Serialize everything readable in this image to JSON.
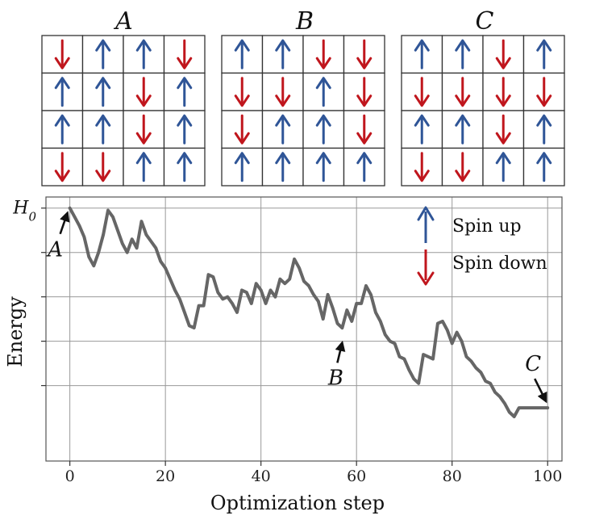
{
  "colors": {
    "spin_up": "#2f5597",
    "spin_down": "#c0161d",
    "energy_line": "#666666",
    "grid": "#999999",
    "cell_border": "#333333"
  },
  "spin_grids": [
    {
      "title": "A",
      "rows": [
        [
          "down",
          "up",
          "up",
          "down"
        ],
        [
          "up",
          "up",
          "down",
          "up"
        ],
        [
          "up",
          "up",
          "down",
          "up"
        ],
        [
          "down",
          "down",
          "up",
          "up"
        ]
      ]
    },
    {
      "title": "B",
      "rows": [
        [
          "up",
          "up",
          "down",
          "down"
        ],
        [
          "down",
          "down",
          "up",
          "down"
        ],
        [
          "down",
          "up",
          "up",
          "down"
        ],
        [
          "up",
          "up",
          "up",
          "up"
        ]
      ]
    },
    {
      "title": "C",
      "rows": [
        [
          "up",
          "up",
          "down",
          "up"
        ],
        [
          "down",
          "down",
          "down",
          "down"
        ],
        [
          "up",
          "up",
          "down",
          "up"
        ],
        [
          "down",
          "down",
          "up",
          "up"
        ]
      ]
    }
  ],
  "chart_data": {
    "type": "line",
    "xlabel": "Optimization step",
    "ylabel": "Energy",
    "xlim": [
      -5,
      103
    ],
    "ylim": [
      -0.57,
      0.025
    ],
    "xticks": [
      0,
      20,
      40,
      60,
      80,
      100
    ],
    "ytick_values": [
      0,
      -0.1,
      -0.2,
      -0.3,
      -0.4
    ],
    "ytick_labels": [
      "H0",
      "",
      "",
      "",
      ""
    ],
    "grid": true,
    "legend": {
      "position": "top-right",
      "entries": [
        {
          "label": "Spin up",
          "icon": "arrow-up-icon"
        },
        {
          "label": "Spin down",
          "icon": "arrow-down-icon"
        }
      ]
    },
    "annotations": [
      {
        "text": "A",
        "x": 0,
        "y": 0
      },
      {
        "text": "B",
        "x": 57,
        "y": -0.285
      },
      {
        "text": "C",
        "x": 100,
        "y": -0.45
      }
    ],
    "series": [
      {
        "x": [
          0,
          1,
          2,
          3,
          4,
          5,
          6,
          7,
          8,
          9,
          10,
          11,
          12,
          13,
          14,
          15,
          16,
          17,
          18,
          19,
          20,
          21,
          22,
          23,
          24,
          25,
          26,
          27,
          28,
          29,
          30,
          31,
          32,
          33,
          34,
          35,
          36,
          37,
          38,
          39,
          40,
          41,
          42,
          43,
          44,
          45,
          46,
          47,
          48,
          49,
          50,
          51,
          52,
          53,
          54,
          55,
          56,
          57,
          58,
          59,
          60,
          61,
          62,
          63,
          64,
          65,
          66,
          67,
          68,
          69,
          70,
          71,
          72,
          73,
          74,
          75,
          76,
          77,
          78,
          79,
          80,
          81,
          82,
          83,
          84,
          85,
          86,
          87,
          88,
          89,
          90,
          91,
          92,
          93,
          94,
          95,
          96,
          97,
          98,
          99,
          100
        ],
        "y": [
          0,
          -0.02,
          -0.04,
          -0.065,
          -0.11,
          -0.13,
          -0.1,
          -0.06,
          -0.005,
          -0.02,
          -0.05,
          -0.08,
          -0.1,
          -0.07,
          -0.09,
          -0.03,
          -0.06,
          -0.075,
          -0.09,
          -0.12,
          -0.135,
          -0.16,
          -0.185,
          -0.205,
          -0.235,
          -0.265,
          -0.27,
          -0.22,
          -0.22,
          -0.15,
          -0.155,
          -0.19,
          -0.205,
          -0.2,
          -0.215,
          -0.235,
          -0.185,
          -0.19,
          -0.215,
          -0.17,
          -0.185,
          -0.215,
          -0.185,
          -0.2,
          -0.16,
          -0.17,
          -0.16,
          -0.115,
          -0.135,
          -0.165,
          -0.175,
          -0.195,
          -0.21,
          -0.25,
          -0.195,
          -0.225,
          -0.26,
          -0.27,
          -0.23,
          -0.255,
          -0.215,
          -0.215,
          -0.175,
          -0.195,
          -0.235,
          -0.255,
          -0.285,
          -0.3,
          -0.305,
          -0.335,
          -0.34,
          -0.365,
          -0.385,
          -0.395,
          -0.33,
          -0.335,
          -0.34,
          -0.26,
          -0.255,
          -0.275,
          -0.305,
          -0.28,
          -0.3,
          -0.335,
          -0.345,
          -0.36,
          -0.37,
          -0.39,
          -0.395,
          -0.415,
          -0.425,
          -0.44,
          -0.46,
          -0.47,
          -0.45,
          -0.45,
          -0.45,
          -0.45,
          -0.45,
          -0.45,
          -0.45
        ]
      }
    ]
  }
}
